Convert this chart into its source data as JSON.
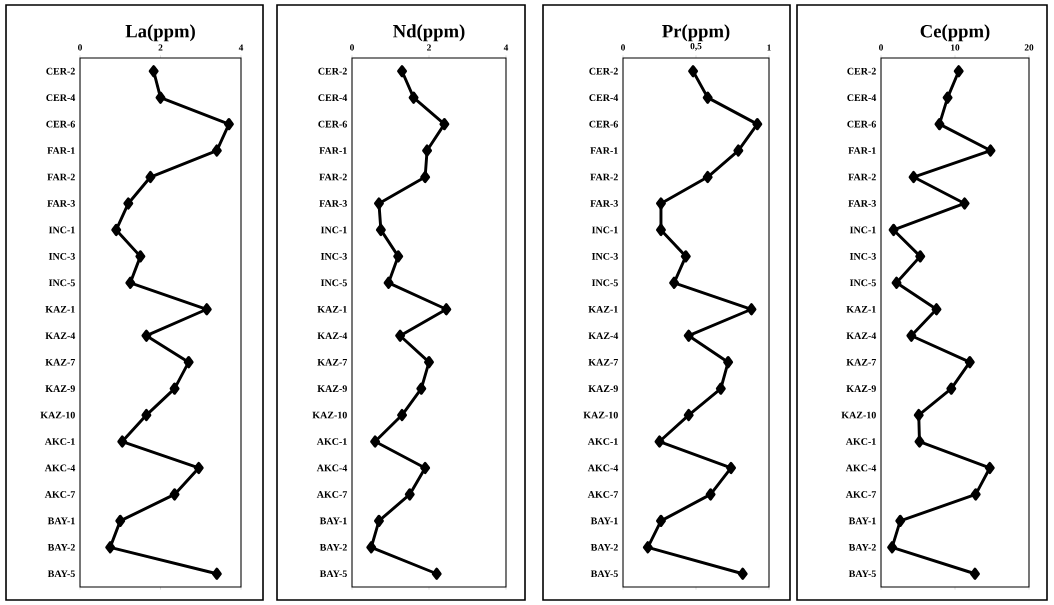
{
  "chart_data": [
    {
      "type": "line",
      "orientation": "horizontal",
      "title": "La(ppm)",
      "categories": [
        "CER-2",
        "CER-4",
        "CER-6",
        "FAR-1",
        "FAR-2",
        "FAR-3",
        "INC-1",
        "INC-3",
        "INC-5",
        "KAZ-1",
        "KAZ-4",
        "KAZ-7",
        "KAZ-9",
        "KAZ-10",
        "AKC-1",
        "AKC-4",
        "AKC-7",
        "BAY-1",
        "BAY-2",
        "BAY-5"
      ],
      "values": [
        1.83,
        2.0,
        3.7,
        3.4,
        1.75,
        1.2,
        0.9,
        1.5,
        1.25,
        3.15,
        1.65,
        2.7,
        2.35,
        1.65,
        1.05,
        2.95,
        2.35,
        1.0,
        0.75,
        3.4
      ],
      "color": "#000000",
      "marker": "diamond",
      "xlim": [
        0,
        4
      ],
      "xticks": [
        0,
        2,
        4
      ]
    },
    {
      "type": "line",
      "orientation": "horizontal",
      "title": "Nd(ppm)",
      "categories": [
        "CER-2",
        "CER-4",
        "CER-6",
        "FAR-1",
        "FAR-2",
        "FAR-3",
        "INC-1",
        "INC-3",
        "INC-5",
        "KAZ-1",
        "KAZ-4",
        "KAZ-7",
        "KAZ-9",
        "KAZ-10",
        "AKC-1",
        "AKC-4",
        "AKC-7",
        "BAY-1",
        "BAY-2",
        "BAY-5"
      ],
      "values": [
        1.3,
        1.6,
        2.4,
        1.95,
        1.9,
        0.7,
        0.75,
        1.2,
        0.95,
        2.45,
        1.25,
        2.0,
        1.8,
        1.3,
        0.6,
        1.9,
        1.5,
        0.7,
        0.5,
        2.2
      ],
      "color": "#000000",
      "marker": "diamond",
      "xlim": [
        0,
        4
      ],
      "xticks": [
        0,
        2,
        4
      ]
    },
    {
      "type": "line",
      "orientation": "horizontal",
      "title": "Pr(ppm)",
      "categories": [
        "CER-2",
        "CER-4",
        "CER-6",
        "FAR-1",
        "FAR-2",
        "FAR-3",
        "INC-1",
        "INC-3",
        "INC-5",
        "KAZ-1",
        "KAZ-4",
        "KAZ-7",
        "KAZ-9",
        "KAZ-10",
        "AKC-1",
        "AKC-4",
        "AKC-7",
        "BAY-1",
        "BAY-2",
        "BAY-5"
      ],
      "values": [
        0.48,
        0.58,
        0.92,
        0.79,
        0.58,
        0.26,
        0.26,
        0.43,
        0.35,
        0.88,
        0.45,
        0.72,
        0.67,
        0.45,
        0.25,
        0.74,
        0.6,
        0.26,
        0.17,
        0.82
      ],
      "color": "#000000",
      "marker": "diamond",
      "xlim": [
        0,
        1
      ],
      "xticks": [
        0,
        {
          "value": 0.5,
          "label": "0,5"
        },
        1
      ]
    },
    {
      "type": "line",
      "orientation": "horizontal",
      "title": "Ce(ppm)",
      "categories": [
        "CER-2",
        "CER-4",
        "CER-6",
        "FAR-1",
        "FAR-2",
        "FAR-3",
        "INC-1",
        "INC-3",
        "INC-5",
        "KAZ-1",
        "KAZ-4",
        "KAZ-7",
        "KAZ-9",
        "KAZ-10",
        "AKC-1",
        "AKC-4",
        "AKC-7",
        "BAY-1",
        "BAY-2",
        "BAY-5"
      ],
      "values": [
        10.5,
        9.0,
        7.9,
        14.8,
        4.4,
        11.3,
        1.7,
        5.3,
        2.1,
        7.5,
        4.1,
        12.0,
        9.5,
        5.1,
        5.2,
        14.7,
        12.8,
        2.6,
        1.5,
        12.7
      ],
      "color": "#000000",
      "marker": "diamond",
      "xlim": [
        0,
        20
      ],
      "xticks": [
        0,
        10,
        20
      ]
    }
  ]
}
